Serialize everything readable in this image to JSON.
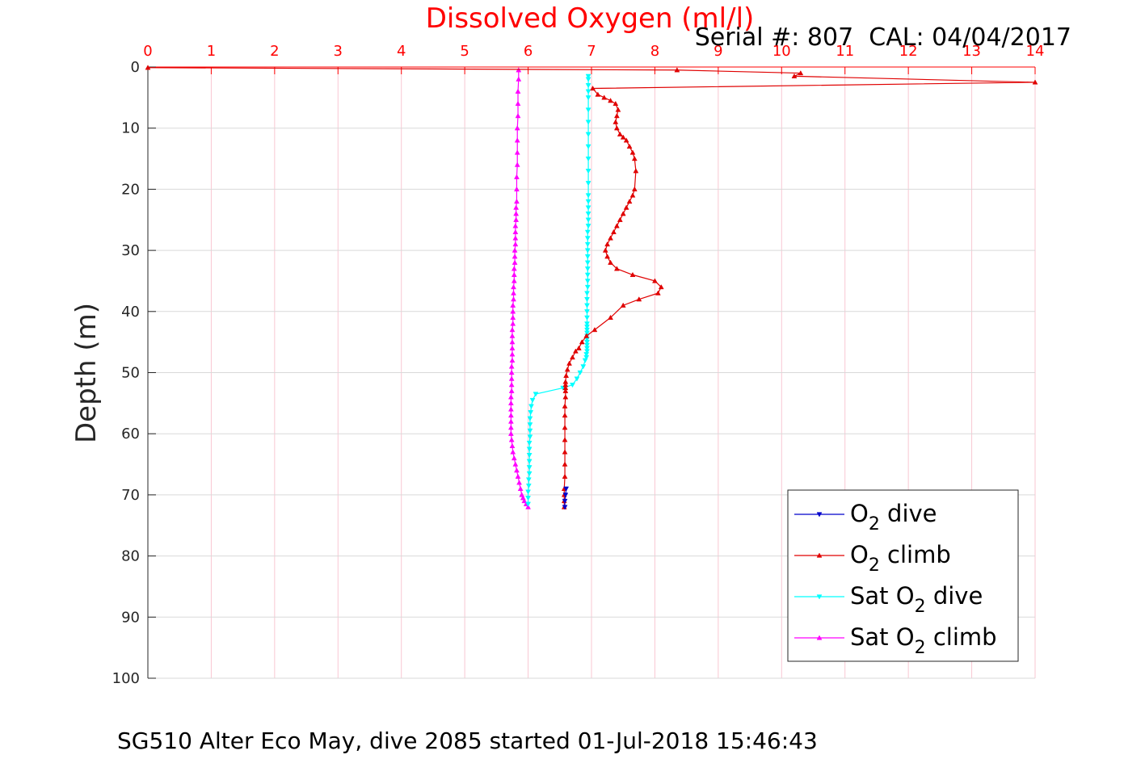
{
  "chart_data": {
    "type": "line",
    "title": "Dissolved Oxygen (ml/l)",
    "serial_text": "Serial #: 807  CAL: 04/04/2017",
    "footer": "SG510 Alter Eco May, dive 2085 started 01-Jul-2018 15:46:43",
    "ylabel": "Depth (m)",
    "xlim": [
      0,
      14
    ],
    "ylim": [
      0,
      100
    ],
    "y_reversed": true,
    "x_axis_position": "top",
    "xticks": [
      "0",
      "1",
      "2",
      "3",
      "4",
      "5",
      "6",
      "7",
      "8",
      "9",
      "10",
      "11",
      "12",
      "13",
      "14"
    ],
    "yticks": [
      "0",
      "10",
      "20",
      "30",
      "40",
      "50",
      "60",
      "70",
      "80",
      "90",
      "100"
    ],
    "grid": true,
    "legend_position": "bottom-right",
    "colors": {
      "title": "#ff0000",
      "xaxis": "#ff0000",
      "grid_vertical": "#f9c7d2",
      "grid_horizontal": "#d9d9d9"
    },
    "series": [
      {
        "key": "o2_dive",
        "legend_main": "O",
        "legend_sub": "2",
        "legend_rest": " dive",
        "color": "#0000cc",
        "marker": "triangle-down",
        "x": [
          6.6,
          6.59,
          6.58,
          6.58
        ],
        "y": [
          69.0,
          70.0,
          71.0,
          72.0
        ]
      },
      {
        "key": "o2_climb",
        "legend_main": "O",
        "legend_sub": "2",
        "legend_rest": " climb",
        "color": "#e00000",
        "marker": "triangle-up",
        "x": [
          6.57,
          6.57,
          6.57,
          6.57,
          6.58,
          6.58,
          6.58,
          6.58,
          6.58,
          6.58,
          6.58,
          6.59,
          6.59,
          6.59,
          6.59,
          6.59,
          6.6,
          6.62,
          6.65,
          6.7,
          6.75,
          6.8,
          6.85,
          6.92,
          7.05,
          7.3,
          7.5,
          7.75,
          8.05,
          8.1,
          8.0,
          7.65,
          7.4,
          7.3,
          7.25,
          7.22,
          7.25,
          7.3,
          7.35,
          7.4,
          7.45,
          7.5,
          7.55,
          7.6,
          7.65,
          7.68,
          7.7,
          7.68,
          7.65,
          7.6,
          7.55,
          7.5,
          7.45,
          7.4,
          7.38,
          7.4,
          7.42,
          7.38,
          7.3,
          7.2,
          7.1,
          7.02,
          14.0,
          10.2,
          10.3,
          8.35,
          0.0
        ],
        "y": [
          72.0,
          71.0,
          70.0,
          69.0,
          67.0,
          65.0,
          63.0,
          61.0,
          59.0,
          57.0,
          55.5,
          54.0,
          53.0,
          52.5,
          52.0,
          51.5,
          50.5,
          49.5,
          48.5,
          47.5,
          46.5,
          46.0,
          45.0,
          44.0,
          43.0,
          41.0,
          39.0,
          38.0,
          37.0,
          36.0,
          35.0,
          34.0,
          33.0,
          32.0,
          31.0,
          30.0,
          29.0,
          28.0,
          27.0,
          26.0,
          25.0,
          24.0,
          23.0,
          22.0,
          21.0,
          20.0,
          17.0,
          15.0,
          14.0,
          13.0,
          12.0,
          11.5,
          11.0,
          10.0,
          9.0,
          8.0,
          7.0,
          6.0,
          5.5,
          5.0,
          4.5,
          3.5,
          2.5,
          1.5,
          1.0,
          0.5,
          0.1
        ]
      },
      {
        "key": "sat_dive",
        "legend_main": "Sat O",
        "legend_sub": "2",
        "legend_rest": " dive",
        "color": "#00ffff",
        "marker": "triangle-down",
        "x": [
          6.95,
          6.95,
          6.95,
          6.95,
          6.95,
          6.95,
          6.95,
          6.95,
          6.95,
          6.95,
          6.95,
          6.95,
          6.95,
          6.95,
          6.95,
          6.95,
          6.95,
          6.95,
          6.94,
          6.94,
          6.94,
          6.94,
          6.94,
          6.94,
          6.94,
          6.94,
          6.94,
          6.94,
          6.93,
          6.93,
          6.93,
          6.93,
          6.93,
          6.93,
          6.93,
          6.93,
          6.93,
          6.93,
          6.93,
          6.93,
          6.93,
          6.93,
          6.93,
          6.92,
          6.92,
          6.9,
          6.87,
          6.82,
          6.77,
          6.7,
          6.55,
          6.12,
          6.07,
          6.05,
          6.04,
          6.03,
          6.03,
          6.03,
          6.03,
          6.02,
          6.02,
          6.02,
          6.02,
          6.02,
          6.02,
          6.01,
          6.01,
          6.0,
          6.0,
          6.0
        ],
        "y": [
          1.5,
          2.0,
          3.0,
          4.0,
          5.0,
          7.0,
          9.0,
          11.0,
          13.0,
          15.0,
          17.0,
          19.0,
          21.0,
          22.0,
          23.0,
          24.0,
          25.0,
          26.0,
          27.0,
          28.0,
          29.0,
          30.0,
          31.0,
          32.0,
          33.0,
          34.0,
          35.0,
          36.0,
          37.0,
          38.0,
          39.0,
          40.0,
          41.0,
          42.0,
          42.5,
          43.0,
          43.5,
          44.0,
          44.5,
          45.0,
          45.5,
          46.0,
          46.5,
          47.0,
          47.5,
          48.0,
          49.0,
          50.0,
          51.0,
          52.0,
          52.5,
          53.5,
          54.5,
          55.5,
          56.5,
          57.5,
          58.5,
          59.5,
          60.5,
          61.5,
          62.5,
          63.5,
          64.5,
          65.5,
          66.5,
          67.5,
          68.5,
          69.5,
          70.5,
          71.5
        ]
      },
      {
        "key": "sat_climb",
        "legend_main": "Sat O",
        "legend_sub": "2",
        "legend_rest": " climb",
        "color": "#ff00ff",
        "marker": "triangle-up",
        "x": [
          6.0,
          5.97,
          5.94,
          5.92,
          5.9,
          5.88,
          5.86,
          5.84,
          5.82,
          5.8,
          5.78,
          5.76,
          5.75,
          5.74,
          5.73,
          5.73,
          5.73,
          5.73,
          5.73,
          5.73,
          5.73,
          5.74,
          5.74,
          5.74,
          5.74,
          5.74,
          5.75,
          5.75,
          5.75,
          5.75,
          5.75,
          5.75,
          5.76,
          5.76,
          5.76,
          5.76,
          5.77,
          5.77,
          5.77,
          5.78,
          5.78,
          5.78,
          5.79,
          5.79,
          5.79,
          5.8,
          5.8,
          5.8,
          5.8,
          5.81,
          5.81,
          5.81,
          5.82,
          5.82,
          5.82,
          5.83,
          5.83,
          5.83,
          5.83,
          5.84,
          5.84,
          5.84,
          5.85,
          5.85
        ],
        "y": [
          72.0,
          71.5,
          71.0,
          70.5,
          70.0,
          69.0,
          68.0,
          67.0,
          66.0,
          65.0,
          64.0,
          63.0,
          62.0,
          61.0,
          60.0,
          59.0,
          58.0,
          57.0,
          56.0,
          55.0,
          54.0,
          53.0,
          52.0,
          51.0,
          50.0,
          49.0,
          48.0,
          47.0,
          46.0,
          45.0,
          44.0,
          43.0,
          42.0,
          41.0,
          40.0,
          39.0,
          38.0,
          37.0,
          36.0,
          35.0,
          34.0,
          33.0,
          32.0,
          31.0,
          30.0,
          29.0,
          28.0,
          27.0,
          26.0,
          25.0,
          24.0,
          23.0,
          22.0,
          20.0,
          18.0,
          16.0,
          14.0,
          12.0,
          10.0,
          8.0,
          6.0,
          4.0,
          2.0,
          0.5
        ]
      }
    ]
  }
}
